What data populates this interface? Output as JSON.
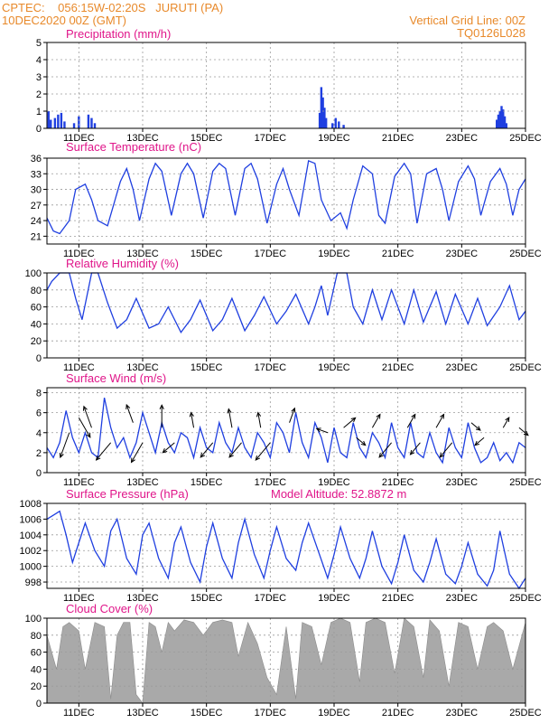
{
  "header": {
    "left_line1": "CPTEC:    056:15W-02:20S   JURUTI (PA)",
    "left_line2": "10DEC2020 00Z (GMT)",
    "right_line1": "Vertical Grid Line: 00Z",
    "right_line2": "TQ0126L028"
  },
  "colors": {
    "header": "#e8892a",
    "panel_title": "#e0168a",
    "series": "#1f3fe0",
    "bar": "#1f3fe0",
    "cloud": "#a9a9a9",
    "grid": "#9a9a9a"
  },
  "x_axis": {
    "start": "10DEC2020 00Z",
    "end": "25DEC2020 00Z",
    "tick_labels": [
      "11DEC",
      "13DEC",
      "15DEC",
      "17DEC",
      "19DEC",
      "21DEC",
      "23DEC",
      "25DEC"
    ],
    "tick_days": [
      1,
      3,
      5,
      7,
      9,
      11,
      13,
      15
    ]
  },
  "chart_data": [
    {
      "type": "bar",
      "title": "Precipitation (mm/h)",
      "ylim": [
        0,
        5
      ],
      "yticks": [
        0,
        1,
        2,
        3,
        4,
        5
      ],
      "x_days": [
        0.05,
        0.12,
        0.25,
        0.35,
        0.45,
        0.55,
        0.85,
        1.0,
        1.3,
        1.4,
        1.5,
        8.55,
        8.6,
        8.65,
        8.7,
        8.75,
        8.95,
        9.05,
        9.15,
        9.3,
        14.1,
        14.15,
        14.2,
        14.25,
        14.3,
        14.35,
        14.4
      ],
      "values": [
        1.0,
        0.5,
        0.6,
        0.8,
        0.9,
        0.4,
        0.3,
        0.7,
        0.8,
        0.6,
        0.3,
        0.9,
        2.4,
        1.8,
        1.2,
        0.6,
        0.3,
        0.6,
        0.4,
        0.2,
        0.5,
        0.8,
        1.0,
        1.3,
        1.1,
        0.7,
        0.3
      ]
    },
    {
      "type": "line",
      "title": "Surface Temperature (nC)",
      "ylim": [
        19.5,
        36
      ],
      "yticks": [
        21,
        24,
        27,
        30,
        33,
        36
      ],
      "x_days": [
        0.0,
        0.2,
        0.4,
        0.7,
        0.9,
        1.2,
        1.4,
        1.6,
        1.9,
        2.3,
        2.5,
        2.7,
        2.9,
        3.2,
        3.4,
        3.6,
        3.9,
        4.2,
        4.4,
        4.6,
        4.9,
        5.2,
        5.4,
        5.6,
        5.9,
        6.2,
        6.4,
        6.6,
        6.9,
        7.2,
        7.4,
        7.6,
        7.9,
        8.2,
        8.4,
        8.6,
        8.9,
        9.2,
        9.4,
        9.6,
        9.9,
        10.2,
        10.4,
        10.6,
        10.9,
        11.2,
        11.4,
        11.6,
        11.9,
        12.2,
        12.4,
        12.6,
        12.9,
        13.2,
        13.4,
        13.6,
        13.9,
        14.2,
        14.4,
        14.6,
        14.8,
        15.0
      ],
      "values": [
        24.5,
        22.0,
        21.5,
        24.0,
        30.0,
        31.0,
        28.0,
        24.0,
        23.0,
        31.5,
        34.0,
        30.0,
        24.0,
        32.0,
        35.0,
        33.5,
        25.0,
        33.0,
        35.0,
        33.0,
        24.5,
        33.5,
        35.0,
        34.0,
        25.0,
        34.0,
        35.0,
        32.0,
        23.5,
        31.0,
        34.0,
        30.0,
        25.0,
        35.5,
        35.0,
        28.0,
        24.0,
        25.5,
        22.5,
        28.0,
        34.5,
        33.0,
        25.0,
        23.5,
        32.5,
        35.0,
        33.0,
        23.5,
        33.0,
        34.0,
        30.0,
        24.0,
        31.5,
        34.5,
        32.0,
        25.0,
        31.5,
        34.0,
        31.0,
        25.0,
        30.0,
        32.0
      ]
    },
    {
      "type": "line",
      "title": "Relative Humidity (%)",
      "ylim": [
        0,
        100
      ],
      "yticks": [
        0,
        20,
        40,
        60,
        80,
        100
      ],
      "x_days": [
        0.0,
        0.15,
        0.4,
        0.7,
        0.9,
        1.1,
        1.4,
        1.6,
        1.9,
        2.2,
        2.5,
        2.8,
        3.2,
        3.5,
        3.8,
        4.2,
        4.5,
        4.8,
        5.2,
        5.5,
        5.8,
        6.2,
        6.5,
        6.8,
        7.2,
        7.5,
        7.8,
        8.2,
        8.4,
        8.6,
        8.8,
        9.1,
        9.4,
        9.6,
        9.9,
        10.2,
        10.5,
        10.8,
        11.2,
        11.5,
        11.8,
        12.2,
        12.5,
        12.8,
        13.2,
        13.5,
        13.8,
        14.2,
        14.5,
        14.8,
        15.0
      ],
      "values": [
        80.0,
        90.0,
        100.0,
        100.0,
        70.0,
        45.0,
        100.0,
        100.0,
        65.0,
        35.0,
        45.0,
        70.0,
        35.0,
        40.0,
        60.0,
        30.0,
        45.0,
        68.0,
        32.0,
        45.0,
        70.0,
        32.0,
        50.0,
        72.0,
        40.0,
        55.0,
        75.0,
        40.0,
        60.0,
        85.0,
        50.0,
        100.0,
        100.0,
        60.0,
        40.0,
        80.0,
        45.0,
        80.0,
        40.0,
        80.0,
        42.0,
        78.0,
        40.0,
        75.0,
        40.0,
        70.0,
        38.0,
        60.0,
        85.0,
        45.0,
        55.0
      ]
    },
    {
      "type": "line",
      "title": "Surface Wind (m/s)",
      "ylim": [
        0,
        8.5
      ],
      "yticks": [
        0,
        2,
        4,
        6,
        8
      ],
      "x_days": [
        0.0,
        0.2,
        0.4,
        0.6,
        0.8,
        1.0,
        1.2,
        1.4,
        1.6,
        1.8,
        2.0,
        2.2,
        2.4,
        2.6,
        2.8,
        3.0,
        3.2,
        3.4,
        3.6,
        3.8,
        4.0,
        4.2,
        4.4,
        4.6,
        4.8,
        5.0,
        5.2,
        5.4,
        5.6,
        5.8,
        6.0,
        6.2,
        6.4,
        6.6,
        6.8,
        7.0,
        7.2,
        7.4,
        7.6,
        7.8,
        8.0,
        8.2,
        8.4,
        8.6,
        8.8,
        9.0,
        9.2,
        9.4,
        9.6,
        9.8,
        10.0,
        10.2,
        10.4,
        10.6,
        10.8,
        11.0,
        11.2,
        11.4,
        11.6,
        11.8,
        12.0,
        12.2,
        12.4,
        12.6,
        12.8,
        13.0,
        13.2,
        13.4,
        13.6,
        13.8,
        14.0,
        14.2,
        14.4,
        14.6,
        14.8,
        15.0
      ],
      "values": [
        2.5,
        1.5,
        3.0,
        6.2,
        3.5,
        2.0,
        4.0,
        2.0,
        1.5,
        7.5,
        4.5,
        2.5,
        3.5,
        1.5,
        3.0,
        6.0,
        4.0,
        2.0,
        5.0,
        3.0,
        2.0,
        4.0,
        3.5,
        1.5,
        4.5,
        2.5,
        2.0,
        5.0,
        3.0,
        2.0,
        4.5,
        2.5,
        1.5,
        4.0,
        3.0,
        1.5,
        5.0,
        4.0,
        2.0,
        6.0,
        3.0,
        1.5,
        5.0,
        3.5,
        1.0,
        4.5,
        2.0,
        1.5,
        5.0,
        2.5,
        1.5,
        4.0,
        3.0,
        1.5,
        5.0,
        2.5,
        1.5,
        5.0,
        2.0,
        1.5,
        4.0,
        2.0,
        1.0,
        4.5,
        2.5,
        1.5,
        5.0,
        2.5,
        1.0,
        1.5,
        3.0,
        1.2,
        2.0,
        1.0,
        3.0,
        2.5
      ]
    },
    {
      "type": "line",
      "title": "Surface Pressure (hPa)",
      "annotation": "Model Altitude: 52.8872 m",
      "ylim": [
        997.2,
        1008
      ],
      "yticks": [
        998,
        1000,
        1002,
        1004,
        1006,
        1008
      ],
      "x_days": [
        0.0,
        0.2,
        0.4,
        0.6,
        0.8,
        1.0,
        1.2,
        1.5,
        1.8,
        2.0,
        2.2,
        2.5,
        2.8,
        3.0,
        3.2,
        3.5,
        3.8,
        4.0,
        4.2,
        4.5,
        4.8,
        5.0,
        5.2,
        5.5,
        5.8,
        6.0,
        6.2,
        6.5,
        6.8,
        7.0,
        7.2,
        7.5,
        7.8,
        8.0,
        8.2,
        8.5,
        8.8,
        9.0,
        9.2,
        9.5,
        9.8,
        10.0,
        10.2,
        10.5,
        10.8,
        11.0,
        11.2,
        11.5,
        11.8,
        12.0,
        12.2,
        12.5,
        12.8,
        13.0,
        13.2,
        13.5,
        13.8,
        14.0,
        14.2,
        14.5,
        14.8,
        15.0
      ],
      "values": [
        1006.0,
        1006.5,
        1007.0,
        1004.0,
        1000.5,
        1003.0,
        1005.5,
        1002.0,
        1000.0,
        1004.5,
        1006.0,
        1001.0,
        999.0,
        1004.0,
        1005.5,
        1001.0,
        998.5,
        1003.0,
        1005.0,
        1000.5,
        998.0,
        1002.5,
        1005.5,
        1001.0,
        998.5,
        1003.0,
        1006.0,
        1001.5,
        998.5,
        1002.0,
        1005.0,
        1001.0,
        999.5,
        1003.0,
        1005.5,
        1002.0,
        998.5,
        1001.5,
        1005.0,
        1001.0,
        998.5,
        1001.0,
        1004.5,
        1000.0,
        997.8,
        1000.5,
        1004.0,
        999.5,
        998.0,
        1000.5,
        1003.5,
        999.0,
        997.8,
        1000.0,
        1003.0,
        999.0,
        997.5,
        999.5,
        1004.5,
        999.0,
        997.2,
        998.5
      ]
    },
    {
      "type": "area",
      "title": "Cloud Cover (%)",
      "ylim": [
        0,
        100
      ],
      "yticks": [
        0,
        20,
        40,
        60,
        80,
        100
      ],
      "x_days": [
        0.0,
        0.3,
        0.5,
        0.7,
        1.0,
        1.2,
        1.5,
        1.8,
        2.0,
        2.2,
        2.4,
        2.6,
        2.8,
        3.0,
        3.2,
        3.4,
        3.6,
        3.8,
        4.0,
        4.3,
        4.6,
        4.9,
        5.2,
        5.5,
        5.8,
        6.0,
        6.3,
        6.6,
        6.9,
        7.2,
        7.5,
        7.8,
        8.0,
        8.3,
        8.6,
        8.9,
        9.2,
        9.5,
        9.8,
        10.0,
        10.3,
        10.6,
        10.9,
        11.2,
        11.5,
        11.8,
        12.0,
        12.3,
        12.6,
        12.9,
        13.2,
        13.5,
        13.8,
        14.0,
        14.3,
        14.6,
        15.0
      ],
      "values": [
        80.0,
        40.0,
        90.0,
        95.0,
        85.0,
        40.0,
        95.0,
        90.0,
        5.0,
        80.0,
        95.0,
        95.0,
        10.0,
        0.0,
        95.0,
        90.0,
        60.0,
        95.0,
        85.0,
        98.0,
        95.0,
        80.0,
        95.0,
        98.0,
        95.0,
        55.0,
        95.0,
        70.0,
        30.0,
        10.0,
        90.0,
        5.0,
        95.0,
        90.0,
        45.0,
        95.0,
        100.0,
        95.0,
        25.0,
        95.0,
        100.0,
        95.0,
        35.0,
        100.0,
        90.0,
        30.0,
        98.0,
        85.0,
        20.0,
        95.0,
        90.0,
        40.0,
        90.0,
        95.0,
        85.0,
        40.0,
        95.0
      ]
    }
  ],
  "wind_barbs": [
    {
      "day": 0.7,
      "value": 4.0,
      "speed": 6.0,
      "dir_deg": 250
    },
    {
      "day": 1.0,
      "value": 5.5,
      "speed": 5.0,
      "dir_deg": 300
    },
    {
      "day": 1.4,
      "value": 4.5,
      "speed": 5.0,
      "dir_deg": 110
    },
    {
      "day": 2.0,
      "value": 3.0,
      "speed": 5.0,
      "dir_deg": 230
    },
    {
      "day": 2.7,
      "value": 5.0,
      "speed": 4.0,
      "dir_deg": 110
    },
    {
      "day": 3.0,
      "value": 3.0,
      "speed": 5.0,
      "dir_deg": 240
    },
    {
      "day": 3.6,
      "value": 4.5,
      "speed": 5.0,
      "dir_deg": 90
    },
    {
      "day": 4.0,
      "value": 3.0,
      "speed": 3.0,
      "dir_deg": 220
    },
    {
      "day": 4.6,
      "value": 4.5,
      "speed": 3.0,
      "dir_deg": 100
    },
    {
      "day": 5.2,
      "value": 3.0,
      "speed": 4.0,
      "dir_deg": 230
    },
    {
      "day": 5.8,
      "value": 4.5,
      "speed": 4.0,
      "dir_deg": 100
    },
    {
      "day": 6.1,
      "value": 3.0,
      "speed": 4.0,
      "dir_deg": 230
    },
    {
      "day": 6.7,
      "value": 4.5,
      "speed": 3.0,
      "dir_deg": 100
    },
    {
      "day": 7.0,
      "value": 3.0,
      "speed": 5.0,
      "dir_deg": 230
    },
    {
      "day": 7.6,
      "value": 5.0,
      "speed": 3.0,
      "dir_deg": 70
    },
    {
      "day": 8.8,
      "value": 4.0,
      "speed": 2.0,
      "dir_deg": 160
    },
    {
      "day": 9.3,
      "value": 4.5,
      "speed": 3.0,
      "dir_deg": 40
    },
    {
      "day": 9.7,
      "value": 3.5,
      "speed": 2.0,
      "dir_deg": 320
    },
    {
      "day": 10.2,
      "value": 4.5,
      "speed": 3.0,
      "dir_deg": 60
    },
    {
      "day": 10.8,
      "value": 3.0,
      "speed": 4.0,
      "dir_deg": 230
    },
    {
      "day": 11.3,
      "value": 4.5,
      "speed": 3.0,
      "dir_deg": 60
    },
    {
      "day": 11.7,
      "value": 3.0,
      "speed": 3.0,
      "dir_deg": 230
    },
    {
      "day": 12.2,
      "value": 4.5,
      "speed": 3.0,
      "dir_deg": 60
    },
    {
      "day": 12.7,
      "value": 3.0,
      "speed": 4.0,
      "dir_deg": 230
    },
    {
      "day": 13.3,
      "value": 5.0,
      "speed": 2.0,
      "dir_deg": 320
    },
    {
      "day": 13.7,
      "value": 3.5,
      "speed": 2.0,
      "dir_deg": 220
    },
    {
      "day": 14.3,
      "value": 4.5,
      "speed": 2.0,
      "dir_deg": 60
    },
    {
      "day": 14.8,
      "value": 4.5,
      "speed": 2.0,
      "dir_deg": 320
    }
  ]
}
